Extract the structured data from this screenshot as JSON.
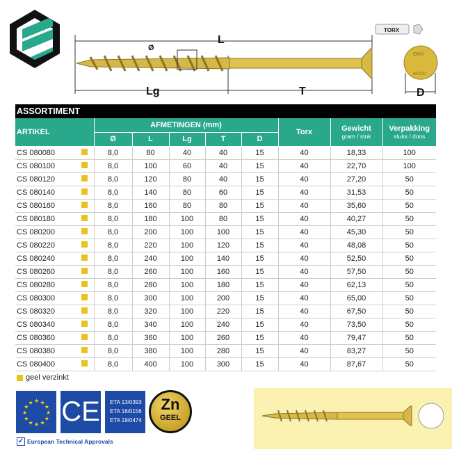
{
  "diagram": {
    "L": "L",
    "Lg": "Lg",
    "T": "T",
    "D": "D",
    "diameter": "Ø",
    "torx_bit": "TORX",
    "head_text_1": "DMX",
    "head_text_2": "8x200"
  },
  "table": {
    "title": "ASSORTIMENT",
    "headers": {
      "artikel": "ARTIKEL",
      "afmetingen": "AFMETINGEN (mm)",
      "dims": [
        "Ø",
        "L",
        "Lg",
        "T",
        "D"
      ],
      "torx": "Torx",
      "gewicht": "Gewicht",
      "gewicht_sub": "gram / stuk",
      "verpakking": "Verpakking",
      "verpakking_sub": "stuks / doos"
    },
    "finish_color": "#e8c21d",
    "rows": [
      [
        "CS 080080",
        "8,0",
        "80",
        "40",
        "40",
        "15",
        "40",
        "18,33",
        "100"
      ],
      [
        "CS 080100",
        "8,0",
        "100",
        "60",
        "40",
        "15",
        "40",
        "22,70",
        "100"
      ],
      [
        "CS 080120",
        "8,0",
        "120",
        "80",
        "40",
        "15",
        "40",
        "27,20",
        "50"
      ],
      [
        "CS 080140",
        "8,0",
        "140",
        "80",
        "60",
        "15",
        "40",
        "31,53",
        "50"
      ],
      [
        "CS 080160",
        "8,0",
        "160",
        "80",
        "80",
        "15",
        "40",
        "35,60",
        "50"
      ],
      [
        "CS 080180",
        "8,0",
        "180",
        "100",
        "80",
        "15",
        "40",
        "40,27",
        "50"
      ],
      [
        "CS 080200",
        "8,0",
        "200",
        "100",
        "100",
        "15",
        "40",
        "45,30",
        "50"
      ],
      [
        "CS 080220",
        "8,0",
        "220",
        "100",
        "120",
        "15",
        "40",
        "48,08",
        "50"
      ],
      [
        "CS 080240",
        "8,0",
        "240",
        "100",
        "140",
        "15",
        "40",
        "52,50",
        "50"
      ],
      [
        "CS 080260",
        "8,0",
        "260",
        "100",
        "160",
        "15",
        "40",
        "57,50",
        "50"
      ],
      [
        "CS 080280",
        "8,0",
        "280",
        "100",
        "180",
        "15",
        "40",
        "62,13",
        "50"
      ],
      [
        "CS 080300",
        "8,0",
        "300",
        "100",
        "200",
        "15",
        "40",
        "65,00",
        "50"
      ],
      [
        "CS 080320",
        "8,0",
        "320",
        "100",
        "220",
        "15",
        "40",
        "67,50",
        "50"
      ],
      [
        "CS 080340",
        "8,0",
        "340",
        "100",
        "240",
        "15",
        "40",
        "73,50",
        "50"
      ],
      [
        "CS 080360",
        "8,0",
        "360",
        "100",
        "260",
        "15",
        "40",
        "79,47",
        "50"
      ],
      [
        "CS 080380",
        "8,0",
        "380",
        "100",
        "280",
        "15",
        "40",
        "83,27",
        "50"
      ],
      [
        "CS 080400",
        "8,0",
        "400",
        "100",
        "300",
        "15",
        "40",
        "87,67",
        "50"
      ]
    ]
  },
  "legend": {
    "label": "geel verzinkt"
  },
  "certs": {
    "ce": "CE",
    "eta": [
      "ETA 13/0393",
      "ETA 16/0156",
      "ETA 19/0474"
    ],
    "zn": "Zn",
    "zn_sub": "GEEL",
    "approvals": "European Technical Approvals"
  }
}
